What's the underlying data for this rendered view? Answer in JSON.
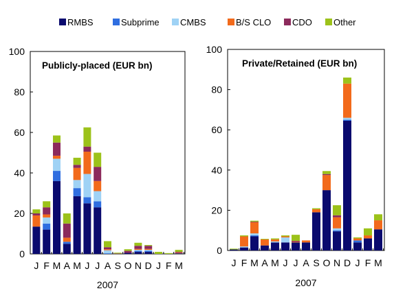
{
  "legend": {
    "placement": "top",
    "items": [
      {
        "name": "RMBS",
        "color": "#0a0a6e"
      },
      {
        "name": "Subprime",
        "color": "#2f6ee0"
      },
      {
        "name": "CMBS",
        "color": "#9fd2f5"
      },
      {
        "name": "B/S CLO",
        "color": "#f26a1b"
      },
      {
        "name": "CDO",
        "color": "#8c2a5c"
      },
      {
        "name": "Other",
        "color": "#9cc21a"
      }
    ]
  },
  "chart_data": [
    {
      "type": "bar",
      "stacked": true,
      "title": "Publicly-placed (EUR bn)",
      "xlabel": "2007",
      "ylabel": "",
      "ylim": [
        0,
        100
      ],
      "yticks": [
        0,
        20,
        40,
        60,
        80,
        100
      ],
      "grid": false,
      "categories": [
        "J",
        "F",
        "M",
        "A",
        "M",
        "J",
        "J",
        "A",
        "S",
        "O",
        "N",
        "D",
        "J",
        "F",
        "M"
      ],
      "series": [
        {
          "name": "RMBS",
          "values": [
            13.5,
            12,
            36,
            5,
            28.5,
            25,
            23,
            0,
            0,
            0.5,
            1,
            1,
            0,
            0,
            0.3
          ]
        },
        {
          "name": "Subprime",
          "values": [
            0,
            3,
            5,
            1,
            4,
            3,
            3,
            0.3,
            0,
            0,
            0.5,
            0.5,
            0,
            0,
            0
          ]
        },
        {
          "name": "CMBS",
          "values": [
            0,
            3,
            6,
            0,
            4,
            11.5,
            5,
            1.5,
            0,
            0,
            0.5,
            0.5,
            0,
            0,
            0
          ]
        },
        {
          "name": "B/S CLO",
          "values": [
            5.5,
            1.5,
            1.5,
            2,
            6,
            11,
            5,
            0.5,
            0,
            0,
            0.5,
            0.5,
            0,
            0,
            0.3
          ]
        },
        {
          "name": "CDO",
          "values": [
            1,
            3.5,
            6.5,
            7,
            1.5,
            2.5,
            7,
            1,
            0.2,
            1,
            1.5,
            1.5,
            0,
            0,
            0.4
          ]
        },
        {
          "name": "Other",
          "values": [
            2,
            3,
            3.5,
            5,
            3.5,
            9.5,
            7,
            3,
            0.4,
            0.8,
            1.5,
            0.4,
            1,
            0.4,
            1
          ]
        }
      ]
    },
    {
      "type": "bar",
      "stacked": true,
      "title": "Private/Retained (EUR bn)",
      "xlabel": "2007",
      "ylabel": "",
      "ylim": [
        0,
        100
      ],
      "yticks": [
        0,
        20,
        40,
        60,
        80,
        100
      ],
      "grid": false,
      "categories": [
        "J",
        "F",
        "M",
        "A",
        "M",
        "J",
        "J",
        "A",
        "S",
        "O",
        "N",
        "D",
        "J",
        "F",
        "M"
      ],
      "series": [
        {
          "name": "RMBS",
          "values": [
            0.5,
            1.5,
            7,
            2.5,
            4,
            4,
            4,
            4,
            19,
            30,
            9.5,
            64.5,
            4,
            6,
            10.5
          ]
        },
        {
          "name": "Subprime",
          "values": [
            0,
            0,
            0.5,
            0,
            0,
            0,
            0,
            0,
            0,
            0,
            0.5,
            0.5,
            1,
            0,
            0
          ]
        },
        {
          "name": "CMBS",
          "values": [
            0,
            0.5,
            1,
            0,
            0.5,
            2.5,
            0,
            0,
            0,
            0,
            1,
            1,
            0,
            0,
            0
          ]
        },
        {
          "name": "B/S CLO",
          "values": [
            0,
            5,
            5.5,
            3,
            1,
            0.5,
            0.3,
            1,
            1.5,
            7.5,
            5.5,
            17,
            1,
            1.5,
            4.5
          ]
        },
        {
          "name": "CDO",
          "values": [
            0,
            0,
            0.3,
            0,
            0,
            0,
            0.5,
            0,
            0,
            0.5,
            1,
            0,
            0,
            0,
            0
          ]
        },
        {
          "name": "Other",
          "values": [
            0.4,
            0.5,
            0.5,
            0.3,
            0.5,
            0.5,
            3,
            0,
            0.5,
            1.5,
            5,
            3,
            0.5,
            3.5,
            3
          ]
        }
      ]
    }
  ]
}
